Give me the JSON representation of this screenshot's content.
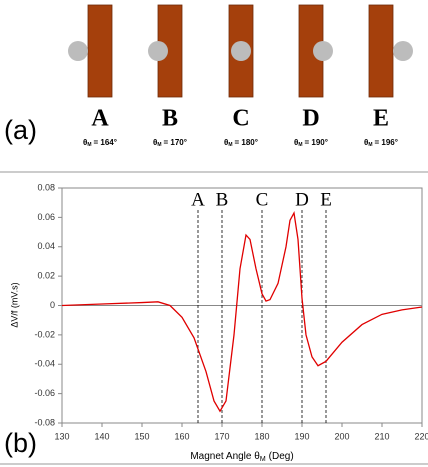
{
  "panel_a": {
    "label": "(a)",
    "theta_symbol": "θ",
    "theta_sub": "M",
    "items": [
      {
        "letter": "A",
        "angle_text": "= 164°"
      },
      {
        "letter": "B",
        "angle_text": "= 170°"
      },
      {
        "letter": "C",
        "angle_text": "= 180°"
      },
      {
        "letter": "D",
        "angle_text": "= 190°"
      },
      {
        "letter": "E",
        "angle_text": "= 196°"
      }
    ]
  },
  "chart_data": {
    "type": "line",
    "panel_label": "(b)",
    "x_label": {
      "text": "Magnet Angle θ",
      "sub": "M",
      "unit": "(Deg)"
    },
    "y_label": "ΔV/f (mV.s)",
    "x": [
      130,
      140,
      150,
      154,
      157,
      160,
      163,
      166,
      168,
      169.5,
      171,
      173,
      174.5,
      176,
      177,
      178.5,
      180,
      181,
      182,
      184,
      186,
      187,
      188,
      189,
      190,
      191,
      192.5,
      194,
      196,
      200,
      205,
      210,
      215,
      220
    ],
    "series": [
      {
        "color": "#e00000",
        "values": [
          0,
          0.001,
          0.002,
          0.0025,
          0.0,
          -0.008,
          -0.022,
          -0.045,
          -0.065,
          -0.072,
          -0.065,
          -0.02,
          0.025,
          0.048,
          0.045,
          0.025,
          0.008,
          0.003,
          0.004,
          0.015,
          0.04,
          0.058,
          0.063,
          0.045,
          0.005,
          -0.02,
          -0.035,
          -0.041,
          -0.038,
          -0.025,
          -0.013,
          -0.006,
          -0.003,
          -0.001
        ]
      }
    ],
    "markers": [
      {
        "label": "A",
        "x": 164
      },
      {
        "label": "B",
        "x": 170
      },
      {
        "label": "C",
        "x": 180
      },
      {
        "label": "D",
        "x": 190
      },
      {
        "label": "E",
        "x": 196
      }
    ],
    "xlim": [
      130,
      220
    ],
    "xticks": [
      130,
      140,
      150,
      160,
      170,
      180,
      190,
      200,
      210,
      220
    ],
    "ylim": [
      -0.08,
      0.08
    ],
    "yticks": [
      -0.08,
      -0.06,
      -0.04,
      -0.02,
      0,
      0.02,
      0.04,
      0.06,
      0.08
    ]
  }
}
